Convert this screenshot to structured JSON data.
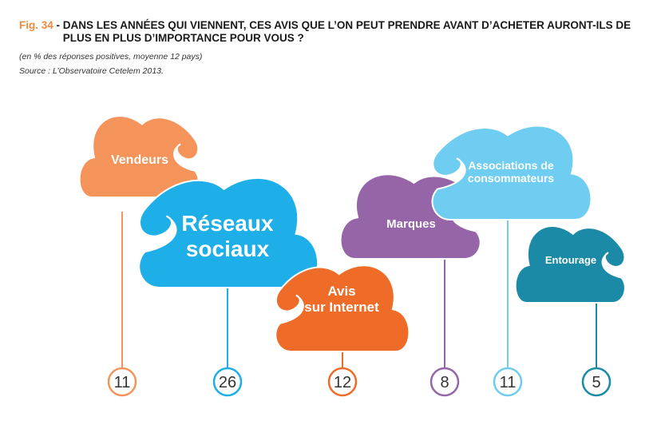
{
  "figure": {
    "label": "Fig. 34",
    "title": "DANS LES ANNÉES QUI VIENNENT, CES AVIS QUE L’ON PEUT PRENDRE AVANT D’ACHETER AURONT-ILS DE PLUS EN PLUS D’IMPORTANCE POUR VOUS ?",
    "subtitle": "(en % des réponses positives, moyenne 12 pays)",
    "source_label": "Source :",
    "source_text": "L’Observatoire Cetelem 2013."
  },
  "chart_data": {
    "type": "bar",
    "title": "DANS LES ANNÉES QUI VIENNENT, CES AVIS QUE L’ON PEUT PRENDRE AVANT D’ACHETER AURONT-ILS DE PLUS EN PLUS D’IMPORTANCE POUR VOUS ?",
    "unit": "% des réponses positives",
    "categories": [
      "Vendeurs",
      "Réseaux sociaux",
      "Avis sur Internet",
      "Marques",
      "Associations de consommateurs",
      "Entourage"
    ],
    "values": [
      11,
      26,
      12,
      8,
      11,
      5
    ],
    "colors": [
      "#f5945a",
      "#1eaee8",
      "#ee6c28",
      "#9565a8",
      "#6fcdf1",
      "#1a8aa6"
    ]
  }
}
